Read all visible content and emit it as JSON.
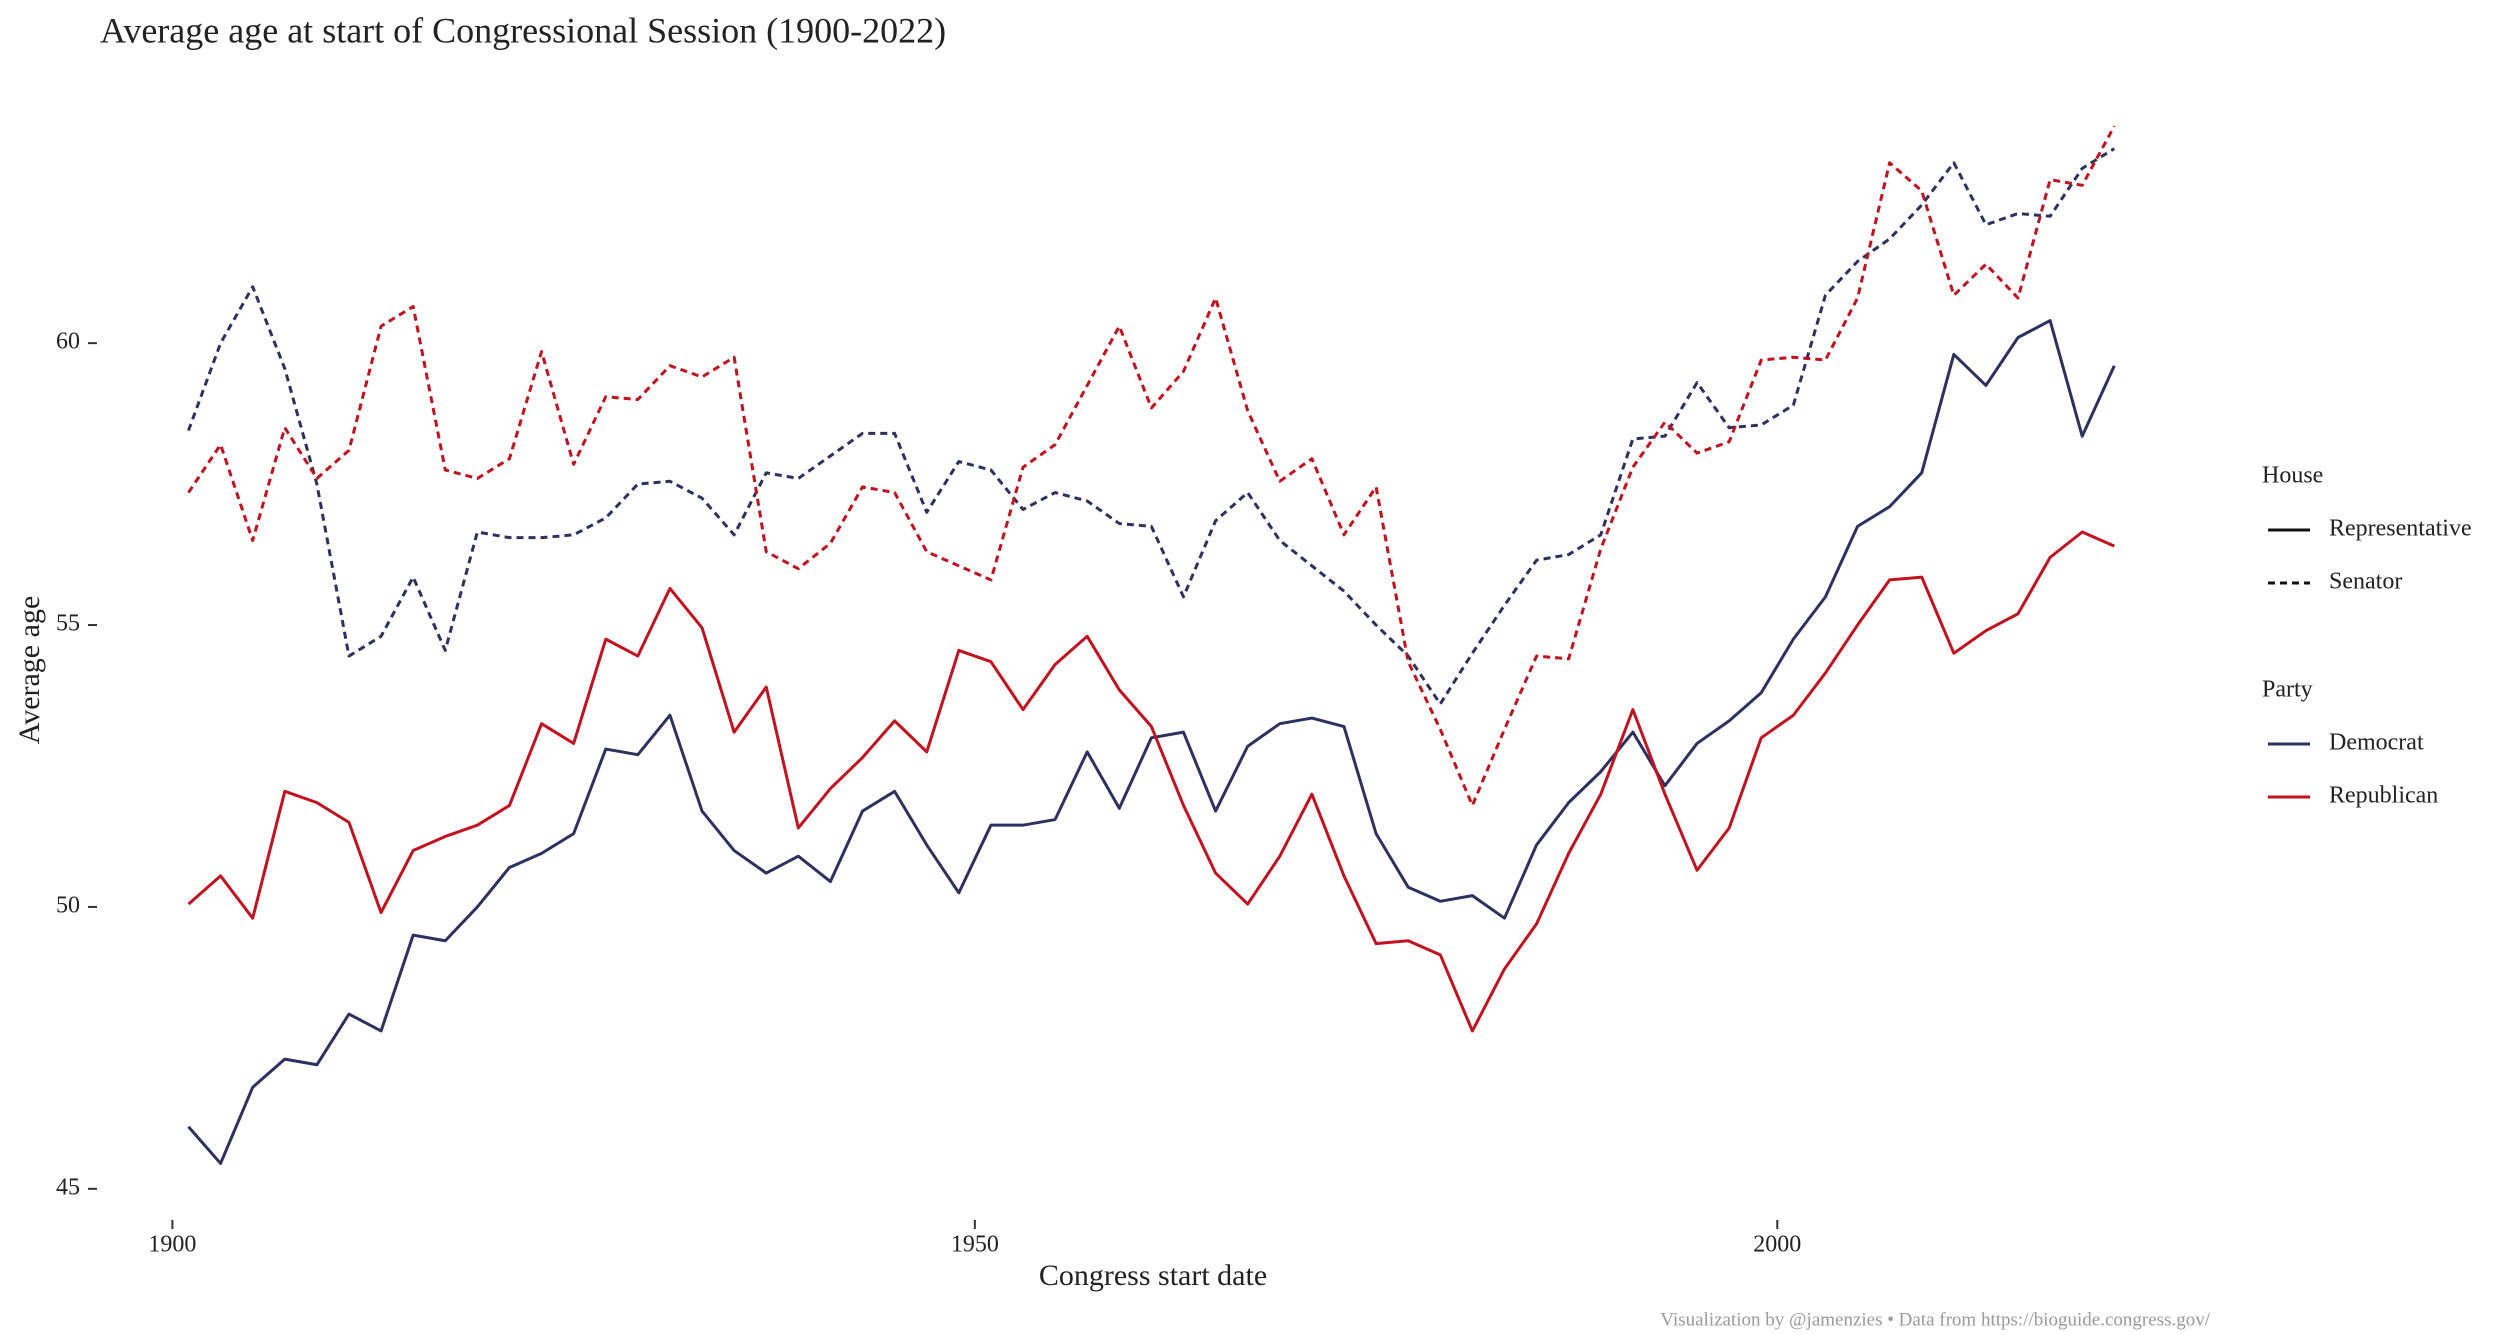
{
  "chart_data": {
    "type": "line",
    "title": "Average age at start of Congressional Session (1900-2022)",
    "xlabel": "Congress start date",
    "ylabel": "Average age",
    "caption": "Visualization by @jamenzies  •  Data from https://bioguide.congress.gov/",
    "x": [
      1901,
      1903,
      1905,
      1907,
      1909,
      1911,
      1913,
      1915,
      1917,
      1919,
      1921,
      1923,
      1925,
      1927,
      1929,
      1931,
      1933,
      1935,
      1937,
      1939,
      1941,
      1943,
      1945,
      1947,
      1949,
      1951,
      1953,
      1955,
      1957,
      1959,
      1961,
      1963,
      1965,
      1967,
      1969,
      1971,
      1973,
      1975,
      1977,
      1979,
      1981,
      1983,
      1985,
      1987,
      1989,
      1991,
      1993,
      1995,
      1997,
      1999,
      2001,
      2003,
      2005,
      2007,
      2009,
      2011,
      2013,
      2015,
      2017,
      2019,
      2021
    ],
    "xlim": [
      1895.2,
      2026.9
    ],
    "xticks": [
      1900,
      1950,
      2000
    ],
    "ylim": [
      44.5,
      64.1
    ],
    "yticks": [
      45,
      50,
      55,
      60
    ],
    "grid": false,
    "legends": [
      {
        "title": "House",
        "entries": [
          {
            "name": "Representative",
            "dash": "solid"
          },
          {
            "name": "Senator",
            "dash": "dashed"
          }
        ]
      },
      {
        "title": "Party",
        "entries": [
          {
            "name": "Democrat",
            "color": "#2e3160"
          },
          {
            "name": "Republican",
            "color": "#c1121f"
          }
        ]
      }
    ],
    "series": [
      {
        "color": "#2e3160",
        "dash": "solid",
        "values": [
          46.1,
          45.45,
          46.8,
          47.3,
          47.2,
          48.1,
          47.8,
          49.5,
          49.4,
          50.0,
          50.7,
          50.95,
          51.3,
          52.8,
          52.7,
          53.4,
          51.7,
          51.0,
          50.6,
          50.9,
          50.45,
          51.7,
          52.05,
          51.1,
          50.25,
          51.45,
          51.45,
          51.55,
          52.75,
          51.75,
          53.0,
          53.1,
          51.7,
          52.85,
          53.25,
          53.35,
          53.2,
          51.3,
          50.35,
          50.1,
          50.2,
          49.8,
          51.1,
          51.85,
          52.4,
          53.1,
          52.15,
          52.9,
          53.3,
          53.8,
          54.75,
          55.5,
          56.75,
          57.1,
          57.7,
          59.8,
          59.25,
          60.1,
          60.4,
          58.35,
          59.6
        ]
      },
      {
        "color": "#c1121f",
        "dash": "solid",
        "values": [
          50.05,
          50.55,
          49.8,
          52.05,
          51.85,
          51.5,
          49.9,
          51.0,
          51.25,
          51.45,
          51.8,
          53.25,
          52.9,
          54.75,
          54.45,
          55.65,
          54.95,
          53.1,
          53.9,
          51.4,
          52.1,
          52.65,
          53.3,
          52.75,
          54.55,
          54.35,
          53.5,
          54.3,
          54.8,
          53.85,
          53.2,
          51.8,
          50.6,
          50.05,
          50.9,
          52.0,
          50.55,
          49.35,
          49.4,
          49.15,
          47.8,
          48.9,
          49.7,
          50.95,
          52.0,
          53.5,
          52.0,
          50.65,
          51.4,
          53.0,
          53.4,
          54.15,
          55.0,
          55.8,
          55.85,
          54.5,
          54.9,
          55.2,
          56.2,
          56.65,
          56.4
        ]
      },
      {
        "color": "#2e3160",
        "dash": "dashed",
        "values": [
          58.45,
          60.0,
          61.0,
          59.55,
          57.5,
          54.45,
          54.8,
          55.85,
          54.55,
          56.65,
          56.55,
          56.55,
          56.6,
          56.9,
          57.5,
          57.55,
          57.25,
          56.6,
          57.7,
          57.6,
          58.0,
          58.4,
          58.4,
          57.0,
          57.9,
          57.75,
          57.05,
          57.35,
          57.2,
          56.8,
          56.75,
          55.5,
          56.85,
          57.35,
          56.5,
          56.05,
          55.6,
          55.0,
          54.45,
          53.6,
          54.5,
          55.35,
          56.15,
          56.25,
          56.6,
          58.3,
          58.35,
          59.3,
          58.5,
          58.55,
          58.9,
          60.85,
          61.45,
          61.85,
          62.45,
          63.2,
          62.1,
          62.3,
          62.25,
          63.1,
          63.45
        ]
      },
      {
        "color": "#c1121f",
        "dash": "dashed",
        "values": [
          57.35,
          58.2,
          56.5,
          58.5,
          57.6,
          58.1,
          60.3,
          60.65,
          57.75,
          57.6,
          57.95,
          59.85,
          57.85,
          59.05,
          59.0,
          59.6,
          59.4,
          59.75,
          56.3,
          56.0,
          56.45,
          57.45,
          57.35,
          56.3,
          56.05,
          55.8,
          57.8,
          58.2,
          59.25,
          60.3,
          58.85,
          59.5,
          60.8,
          58.8,
          57.55,
          57.95,
          56.6,
          57.45,
          54.35,
          53.15,
          51.8,
          53.15,
          54.45,
          54.4,
          56.35,
          57.8,
          58.6,
          58.05,
          58.25,
          59.7,
          59.75,
          59.7,
          60.8,
          63.2,
          62.7,
          60.85,
          61.4,
          60.8,
          62.9,
          62.8,
          63.85
        ]
      }
    ]
  }
}
